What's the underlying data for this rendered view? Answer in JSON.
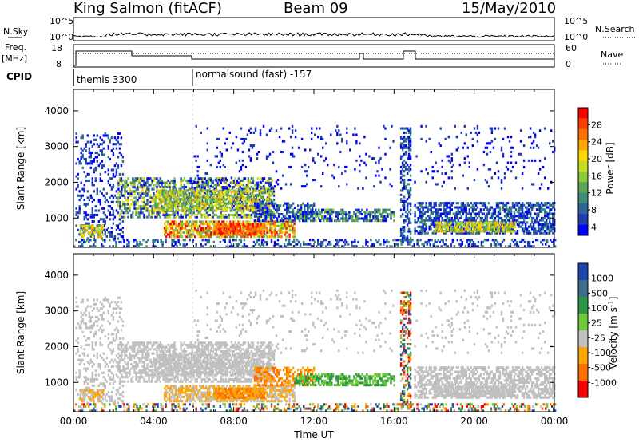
{
  "header": {
    "station": "King Salmon (fitACF)",
    "beam": "Beam 09",
    "date": "15/May/2010"
  },
  "strip_labels": {
    "nsky": "N.Sky",
    "nsearch": "N.Search",
    "freq": "Freq.",
    "freq_unit": "[MHz]",
    "nave": "Nave",
    "cpid": "CPID",
    "nsky_ticks": [
      "10^5",
      "10^0"
    ],
    "nsearch_ticks": [
      "10^5",
      "10^0"
    ],
    "freq_ticks": [
      "18",
      "8"
    ],
    "nave_ticks": [
      "60",
      "0"
    ]
  },
  "cpid_programs": [
    {
      "name": "themis 3300",
      "start_hour": 0.0
    },
    {
      "name": "normalsound (fast) -157",
      "start_hour": 6.0
    }
  ],
  "chart_data": [
    {
      "type": "heatmap",
      "name": "power",
      "ylabel": "Slant Range [km]",
      "xlabel": "",
      "xlim": [
        0,
        24
      ],
      "ylim": [
        180,
        4600
      ],
      "yticks": [
        1000,
        2000,
        3000,
        4000
      ],
      "colorbar_label": "Power [dB]",
      "colorbar_ticks": [
        "4",
        "8",
        "12",
        "16",
        "20",
        "24",
        "28"
      ],
      "colors": [
        "#0000ff",
        "#1e3cb4",
        "#2d6496",
        "#3c8c78",
        "#5aa55a",
        "#8cc83c",
        "#c8dc1e",
        "#ffd700",
        "#ffa500",
        "#ff6e00",
        "#ff3c00",
        "#ff0000"
      ]
    },
    {
      "type": "heatmap",
      "name": "velocity",
      "ylabel": "Slant Range [km]",
      "xlabel": "Time UT",
      "xlim": [
        0,
        24
      ],
      "ylim": [
        180,
        4600
      ],
      "yticks": [
        1000,
        2000,
        3000,
        4000
      ],
      "xticks": [
        "00:00",
        "04:00",
        "08:00",
        "12:00",
        "16:00",
        "20:00",
        "00:00"
      ],
      "colorbar_label": "Velocity [m s^-1]",
      "colorbar_ticks": [
        "1000",
        "500",
        "100",
        "25",
        "-25",
        "-100",
        "-500",
        "-1000"
      ],
      "colors": [
        "#1e46aa",
        "#3c6e8c",
        "#2d9646",
        "#6ec83c",
        "#c0c0c0",
        "#ffa500",
        "#ff6e00",
        "#ff0000"
      ]
    }
  ]
}
